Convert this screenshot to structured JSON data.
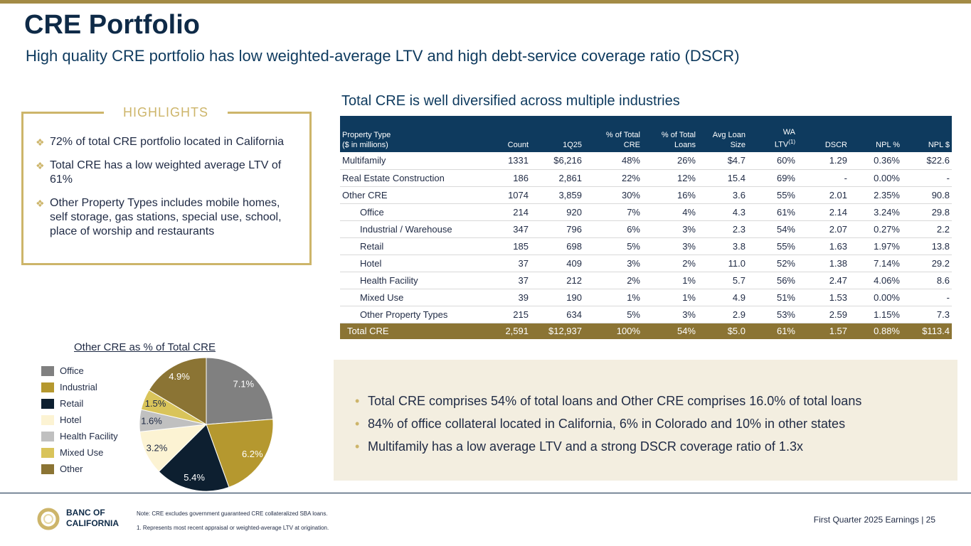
{
  "header": {
    "title": "CRE Portfolio",
    "subtitle": "High quality CRE portfolio has low weighted-average LTV and high debt-service coverage ratio (DSCR)"
  },
  "highlights": {
    "title": "HIGHLIGHTS",
    "items": [
      "72% of total CRE portfolio located in California",
      "Total CRE has a low weighted average LTV of 61%",
      "Other Property Types includes mobile homes, self storage, gas stations, special use, school, place of worship and restaurants"
    ]
  },
  "table": {
    "title": "Total CRE is well diversified across multiple industries",
    "headers": {
      "property_type": "Property Type",
      "units": "($ in millions)",
      "count": "Count",
      "q": "1Q25",
      "pct_cre_1": "% of Total",
      "pct_cre_2": "CRE",
      "pct_loans_1": "% of  Total",
      "pct_loans_2": "Loans",
      "avg_1": "Avg Loan",
      "avg_2": "Size",
      "wa_1": "WA",
      "wa_2": "LTV",
      "wa_sup": "(1)",
      "dscr": "DSCR",
      "npl_pct": "NPL %",
      "npl_amt": "NPL $"
    },
    "rows": [
      [
        "Multifamily",
        "1331",
        "$6,216",
        "48%",
        "26%",
        "$4.7",
        "60%",
        "1.29",
        "0.36%",
        "$22.6"
      ],
      [
        "Real Estate Construction",
        "186",
        "2,861",
        "22%",
        "12%",
        "15.4",
        "69%",
        "-",
        "0.00%",
        "-"
      ],
      [
        "Other CRE",
        "1074",
        "3,859",
        "30%",
        "16%",
        "3.6",
        "55%",
        "2.01",
        "2.35%",
        "90.8"
      ],
      [
        "Office",
        "214",
        "920",
        "7%",
        "4%",
        "4.3",
        "61%",
        "2.14",
        "3.24%",
        "29.8"
      ],
      [
        "Industrial / Warehouse",
        "347",
        "796",
        "6%",
        "3%",
        "2.3",
        "54%",
        "2.07",
        "0.27%",
        "2.2"
      ],
      [
        "Retail",
        "185",
        "698",
        "5%",
        "3%",
        "3.8",
        "55%",
        "1.63",
        "1.97%",
        "13.8"
      ],
      [
        "Hotel",
        "37",
        "409",
        "3%",
        "2%",
        "11.0",
        "52%",
        "1.38",
        "7.14%",
        "29.2"
      ],
      [
        "Health Facility",
        "37",
        "212",
        "2%",
        "1%",
        "5.7",
        "56%",
        "2.47",
        "4.06%",
        "8.6"
      ],
      [
        "Mixed Use",
        "39",
        "190",
        "1%",
        "1%",
        "4.9",
        "51%",
        "1.53",
        "0.00%",
        "-"
      ],
      [
        "Other Property Types",
        "215",
        "634",
        "5%",
        "3%",
        "2.9",
        "53%",
        "2.59",
        "1.15%",
        "7.3"
      ]
    ],
    "total": [
      "Total CRE",
      "2,591",
      "$12,937",
      "100%",
      "54%",
      "$5.0",
      "61%",
      "1.57",
      "0.88%",
      "$113.4"
    ]
  },
  "pie": {
    "title": "Other CRE as % of Total CRE",
    "legend": [
      "Office",
      "Industrial",
      "Retail",
      "Hotel",
      "Health Facility",
      "Mixed Use",
      "Other"
    ],
    "colors": [
      "#808080",
      "#b5982f",
      "#0d1f30",
      "#fcf3d3",
      "#c0c0c0",
      "#d9c45a",
      "#8b7434"
    ],
    "labels": [
      "7.1%",
      "6.2%",
      "5.4%",
      "3.2%",
      "1.6%",
      "1.5%",
      "4.9%"
    ]
  },
  "chart_data": {
    "type": "pie",
    "title": "Other CRE as % of Total CRE",
    "categories": [
      "Office",
      "Industrial",
      "Retail",
      "Hotel",
      "Health Facility",
      "Mixed Use",
      "Other"
    ],
    "values": [
      7.1,
      6.2,
      5.4,
      3.2,
      1.6,
      1.5,
      4.9
    ]
  },
  "callout": {
    "items": [
      "Total CRE comprises 54% of total loans and Other CRE comprises 16.0% of total loans",
      "84% of office collateral located in California, 6% in Colorado and 10% in other states",
      "Multifamily has a low average LTV and a strong DSCR coverage ratio of 1.3x"
    ]
  },
  "footer": {
    "logo_line1": "BANC OF",
    "logo_line2": "CALIFORNIA",
    "note": "Note: CRE excludes government guaranteed CRE collateralized SBA loans.",
    "footnote": "1.  Represents most recent appraisal or weighted-average LTV at origination.",
    "page_label": "First Quarter 2025 Earnings |  25"
  }
}
